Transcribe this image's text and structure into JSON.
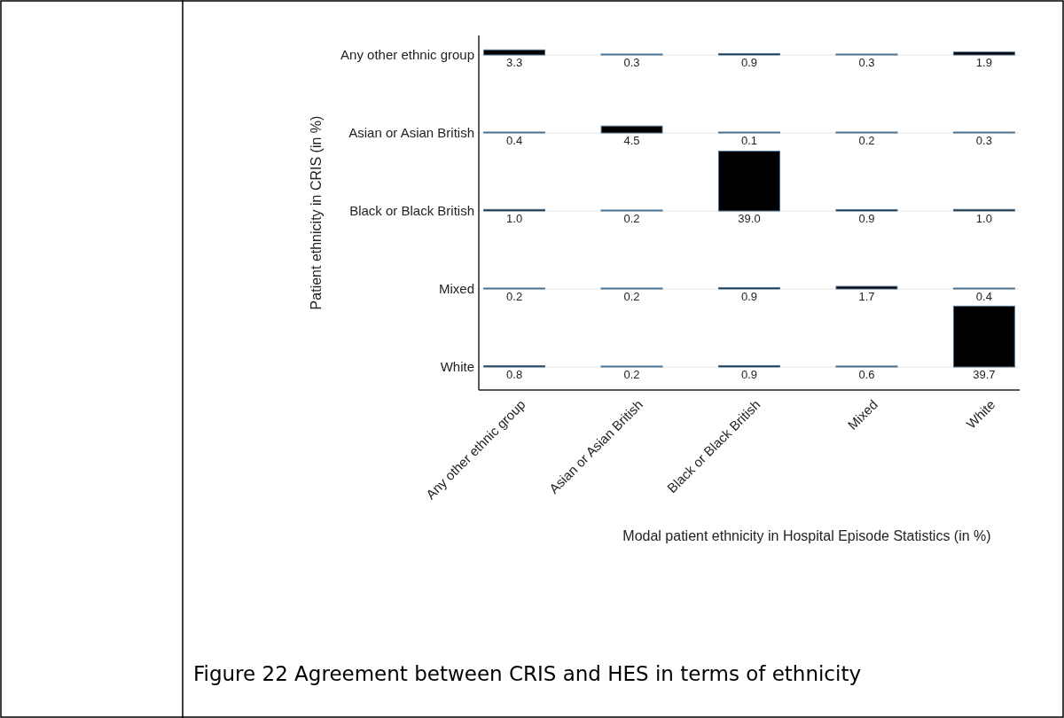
{
  "chart_data": {
    "type": "heatmap",
    "xlabel": "Modal patient ethnicity in Hospital Episode Statistics (in %)",
    "ylabel": "Patient ethnicity in CRIS (in %)",
    "categories": [
      "Any other ethnic group",
      "Asian or Asian British",
      "Black or Black British",
      "Mixed",
      "White"
    ],
    "y_categories": [
      "Any other ethnic group",
      "Asian or Asian British",
      "Black or Black British",
      "Mixed",
      "White"
    ],
    "cells": [
      [
        3.3,
        0.3,
        0.9,
        0.3,
        1.9
      ],
      [
        0.4,
        4.5,
        0.1,
        0.2,
        0.3
      ],
      [
        1.0,
        0.2,
        39.0,
        0.9,
        1.0
      ],
      [
        0.2,
        0.2,
        0.9,
        1.7,
        0.4
      ],
      [
        0.8,
        0.2,
        0.9,
        0.6,
        39.7
      ]
    ],
    "cell_labels": [
      [
        "3.3",
        "0.3",
        "0.9",
        "0.3",
        "1.9"
      ],
      [
        "0.4",
        "4.5",
        "0.1",
        "0.2",
        "0.3"
      ],
      [
        "1.0",
        "0.2",
        "39.0",
        "0.9",
        "1.0"
      ],
      [
        "0.2",
        "0.2",
        "0.9",
        "1.7",
        "0.4"
      ],
      [
        "0.8",
        "0.2",
        "0.9",
        "0.6",
        "39.7"
      ]
    ],
    "color": "#000000",
    "grid": "y",
    "annotations": [
      "Figure 22 Agreement between CRIS and HES in terms of ethnicity"
    ]
  }
}
